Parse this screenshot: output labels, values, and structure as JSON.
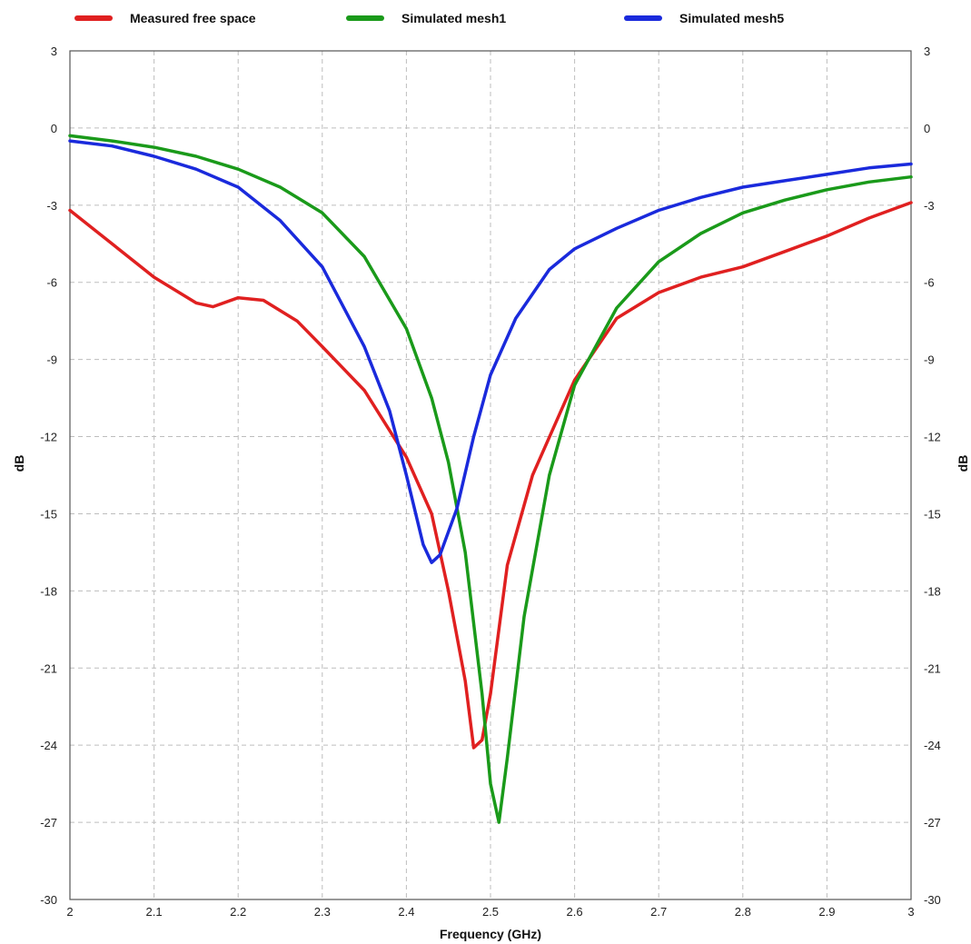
{
  "chart_data": {
    "type": "line",
    "xlabel": "Frequency (GHz)",
    "ylabel": "dB",
    "ylabel_right": "dB",
    "xlim": [
      2,
      3
    ],
    "ylim": [
      -30,
      3
    ],
    "x_ticks": [
      2,
      2.1,
      2.2,
      2.3,
      2.4,
      2.5,
      2.6,
      2.7,
      2.8,
      2.9,
      3
    ],
    "x_tick_labels": [
      "2",
      "2.1",
      "2.2",
      "2.3",
      "2.4",
      "2.5",
      "2.6",
      "2.7",
      "2.8",
      "2.9",
      "3"
    ],
    "y_ticks": [
      3,
      0,
      -3,
      -6,
      -9,
      -12,
      -15,
      -18,
      -21,
      -24,
      -27,
      -30
    ],
    "y_tick_labels": [
      "3",
      "0",
      "-3",
      "-6",
      "-9",
      "-12",
      "-15",
      "-18",
      "-21",
      "-24",
      "-27",
      "-30"
    ],
    "grid": true,
    "legend_position": "top",
    "series": [
      {
        "name": "Measured free space",
        "color": "#e02020",
        "x": [
          2.0,
          2.05,
          2.1,
          2.15,
          2.17,
          2.2,
          2.23,
          2.27,
          2.3,
          2.35,
          2.4,
          2.43,
          2.45,
          2.47,
          2.48,
          2.49,
          2.5,
          2.52,
          2.55,
          2.6,
          2.65,
          2.7,
          2.75,
          2.8,
          2.85,
          2.9,
          2.95,
          3.0
        ],
        "y": [
          -3.2,
          -4.5,
          -5.8,
          -6.8,
          -6.95,
          -6.6,
          -6.7,
          -7.5,
          -8.5,
          -10.2,
          -12.8,
          -15.0,
          -18.0,
          -21.5,
          -24.1,
          -23.8,
          -22.0,
          -17.0,
          -13.5,
          -9.8,
          -7.4,
          -6.4,
          -5.8,
          -5.4,
          -4.8,
          -4.2,
          -3.5,
          -2.9
        ]
      },
      {
        "name": "Simulated mesh1",
        "color": "#1a9a1a",
        "x": [
          2.0,
          2.05,
          2.1,
          2.15,
          2.2,
          2.25,
          2.3,
          2.35,
          2.4,
          2.43,
          2.45,
          2.47,
          2.49,
          2.5,
          2.51,
          2.52,
          2.54,
          2.57,
          2.6,
          2.65,
          2.7,
          2.75,
          2.8,
          2.85,
          2.9,
          2.95,
          3.0
        ],
        "y": [
          -0.3,
          -0.5,
          -0.75,
          -1.1,
          -1.6,
          -2.3,
          -3.3,
          -5.0,
          -7.8,
          -10.5,
          -13.0,
          -16.5,
          -22.0,
          -25.5,
          -27.0,
          -24.5,
          -19.0,
          -13.5,
          -10.0,
          -7.0,
          -5.2,
          -4.1,
          -3.3,
          -2.8,
          -2.4,
          -2.1,
          -1.9
        ]
      },
      {
        "name": "Simulated mesh5",
        "color": "#1a2adc",
        "x": [
          2.0,
          2.05,
          2.1,
          2.15,
          2.2,
          2.25,
          2.3,
          2.35,
          2.38,
          2.4,
          2.42,
          2.43,
          2.44,
          2.46,
          2.48,
          2.5,
          2.53,
          2.57,
          2.6,
          2.65,
          2.7,
          2.75,
          2.8,
          2.85,
          2.9,
          2.95,
          3.0
        ],
        "y": [
          -0.5,
          -0.7,
          -1.1,
          -1.6,
          -2.3,
          -3.6,
          -5.4,
          -8.5,
          -11.0,
          -13.5,
          -16.2,
          -16.9,
          -16.6,
          -14.8,
          -12.0,
          -9.6,
          -7.4,
          -5.5,
          -4.7,
          -3.9,
          -3.2,
          -2.7,
          -2.3,
          -2.05,
          -1.8,
          -1.55,
          -1.4
        ]
      }
    ]
  }
}
